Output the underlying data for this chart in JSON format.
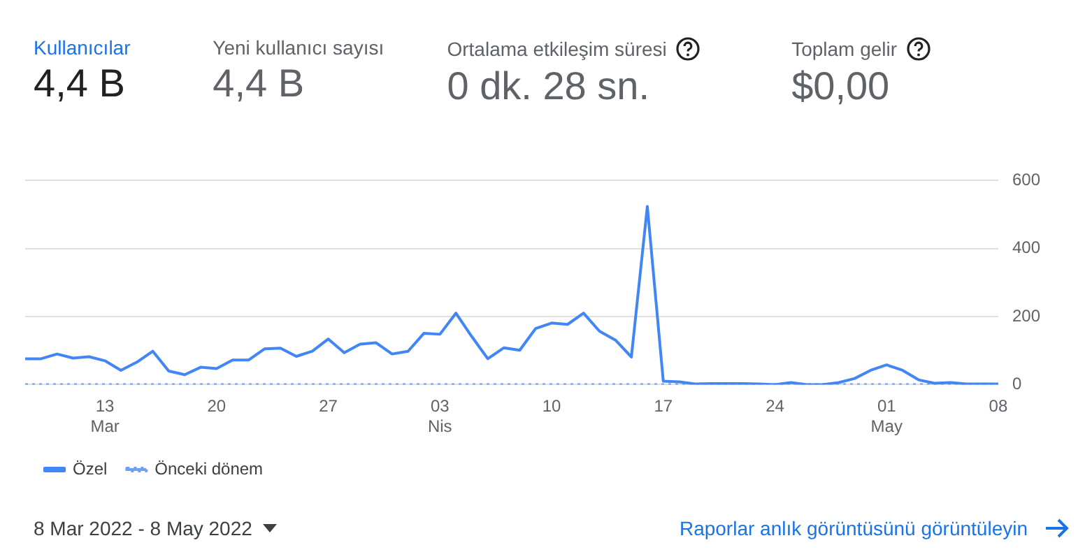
{
  "chart_data": {
    "type": "line",
    "annotations": [
      "Kullanıcılar",
      "4,4 B",
      "Yeni kullanıcı sayısı",
      "4,4 B",
      "Ortalama etkileşim süresi",
      "0 dk. 28 sn.",
      "Toplam gelir",
      "$0,00",
      "8 Mar 2022 - 8 May 2022",
      "Raporlar anlık görüntüsünü görüntüleyin"
    ],
    "x": [
      "2022-03-08",
      "2022-03-09",
      "2022-03-10",
      "2022-03-11",
      "2022-03-12",
      "2022-03-13",
      "2022-03-14",
      "2022-03-15",
      "2022-03-16",
      "2022-03-17",
      "2022-03-18",
      "2022-03-19",
      "2022-03-20",
      "2022-03-21",
      "2022-03-22",
      "2022-03-23",
      "2022-03-24",
      "2022-03-25",
      "2022-03-26",
      "2022-03-27",
      "2022-03-28",
      "2022-03-29",
      "2022-03-30",
      "2022-03-31",
      "2022-04-01",
      "2022-04-02",
      "2022-04-03",
      "2022-04-04",
      "2022-04-05",
      "2022-04-06",
      "2022-04-07",
      "2022-04-08",
      "2022-04-09",
      "2022-04-10",
      "2022-04-11",
      "2022-04-12",
      "2022-04-13",
      "2022-04-14",
      "2022-04-15",
      "2022-04-16",
      "2022-04-17",
      "2022-04-18",
      "2022-04-19",
      "2022-04-20",
      "2022-04-21",
      "2022-04-22",
      "2022-04-23",
      "2022-04-24",
      "2022-04-25",
      "2022-04-26",
      "2022-04-27",
      "2022-04-28",
      "2022-04-29",
      "2022-04-30",
      "2022-05-01",
      "2022-05-02",
      "2022-05-03",
      "2022-05-04",
      "2022-05-05",
      "2022-05-06",
      "2022-05-07",
      "2022-05-08"
    ],
    "series": [
      {
        "name": "Özel",
        "color": "#4285f4",
        "line_style": "solid",
        "values": [
          76,
          76,
          90,
          78,
          82,
          70,
          42,
          66,
          98,
          40,
          29,
          51,
          47,
          72,
          72,
          105,
          107,
          83,
          98,
          134,
          94,
          119,
          123,
          90,
          98,
          151,
          148,
          210,
          141,
          76,
          108,
          101,
          165,
          181,
          177,
          210,
          157,
          131,
          81,
          524,
          10,
          8,
          2,
          3,
          3,
          3,
          2,
          0,
          6,
          0,
          0,
          6,
          18,
          42,
          58,
          42,
          14,
          4,
          6,
          2,
          2,
          2
        ]
      },
      {
        "name": "Önceki dönem",
        "color": "#6f9ff5",
        "line_style": "dotted",
        "values": [
          0,
          0,
          0,
          0,
          0,
          0,
          0,
          0,
          0,
          0,
          0,
          0,
          0,
          0,
          0,
          0,
          0,
          0,
          0,
          0,
          0,
          0,
          0,
          0,
          0,
          0,
          0,
          0,
          0,
          0,
          0,
          0,
          0,
          0,
          0,
          0,
          0,
          0,
          0,
          0,
          0,
          0,
          0,
          0,
          0,
          0,
          0,
          0,
          0,
          0,
          0,
          0,
          0,
          0,
          0,
          0,
          0,
          0,
          0,
          0,
          0,
          0
        ]
      }
    ],
    "xlim": [
      "2022-03-08",
      "2022-05-08"
    ],
    "xticks": [
      {
        "value": "2022-03-13",
        "label": "13 Mar"
      },
      {
        "value": "2022-03-20",
        "label": "20"
      },
      {
        "value": "2022-03-27",
        "label": "27"
      },
      {
        "value": "2022-04-03",
        "label": "03 Nis"
      },
      {
        "value": "2022-04-10",
        "label": "10"
      },
      {
        "value": "2022-04-17",
        "label": "17"
      },
      {
        "value": "2022-04-24",
        "label": "24"
      },
      {
        "value": "2022-05-01",
        "label": "01 May"
      },
      {
        "value": "2022-05-08",
        "label": "08"
      }
    ],
    "ylim": [
      0,
      600
    ],
    "yticks": [
      0,
      200,
      400,
      600
    ],
    "grid": "y",
    "legend": "bottom left",
    "marker": "none"
  }
}
